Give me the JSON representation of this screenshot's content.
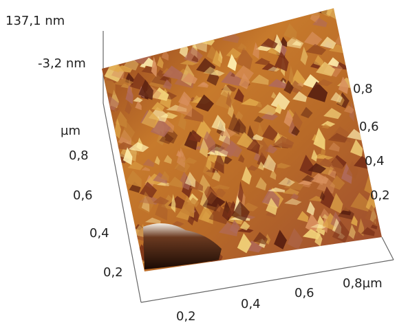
{
  "z_axis": {
    "max_label": "137,1  nm",
    "min_label": "-3,2  nm"
  },
  "left_axis": {
    "unit": "µm",
    "ticks": [
      "0,8",
      "0,6",
      "0,4",
      "0,2"
    ]
  },
  "bottom_axis": {
    "ticks": [
      "0,2",
      "0,4",
      "0,6",
      "0,8µm"
    ]
  },
  "right_axis": {
    "ticks": [
      "0,8",
      "0,6",
      "0,4",
      "0,2"
    ]
  }
}
